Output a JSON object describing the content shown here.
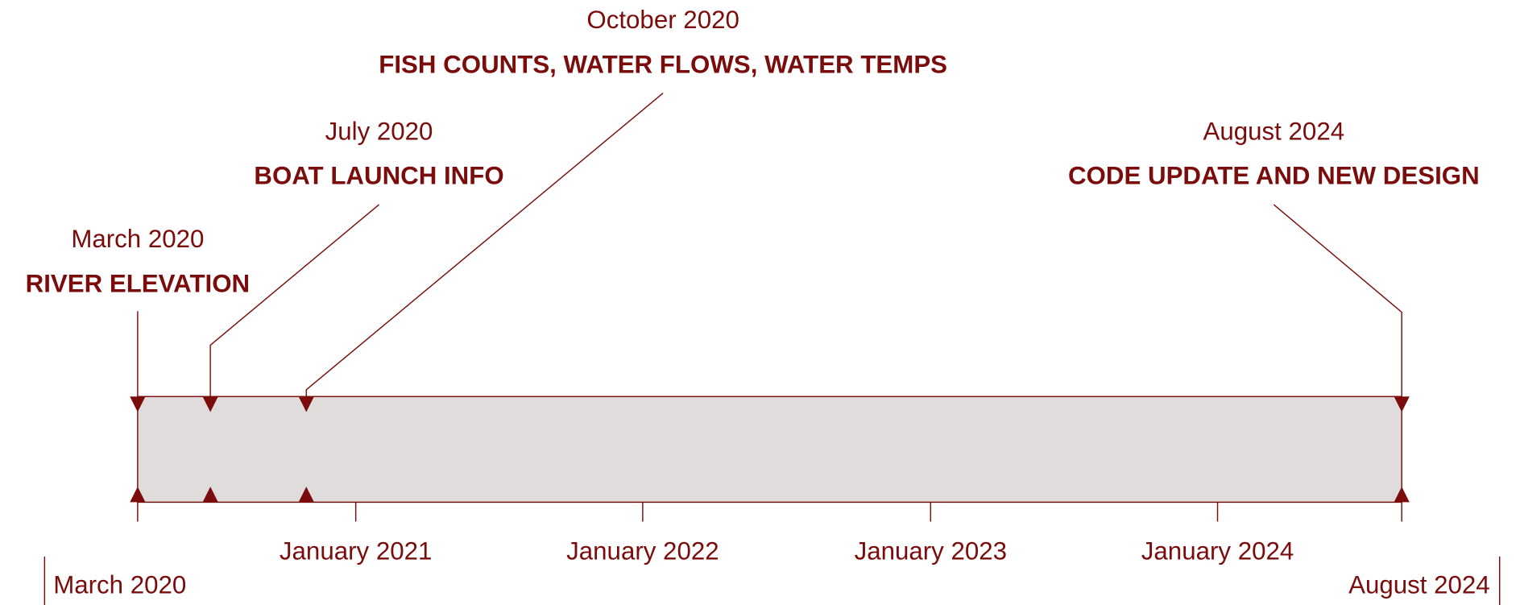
{
  "events": [
    {
      "date": "March 2020",
      "label": "RIVER ELEVATION"
    },
    {
      "date": "July 2020",
      "label": "BOAT LAUNCH INFO"
    },
    {
      "date": "October 2020",
      "label": "FISH COUNTS, WATER FLOWS, WATER TEMPS"
    },
    {
      "date": "August 2024",
      "label": "CODE UPDATE AND NEW DESIGN"
    }
  ],
  "axis": {
    "ticks": [
      "January 2021",
      "January 2022",
      "January 2023",
      "January 2024"
    ],
    "start": "March 2020",
    "end": "August 2024"
  }
}
